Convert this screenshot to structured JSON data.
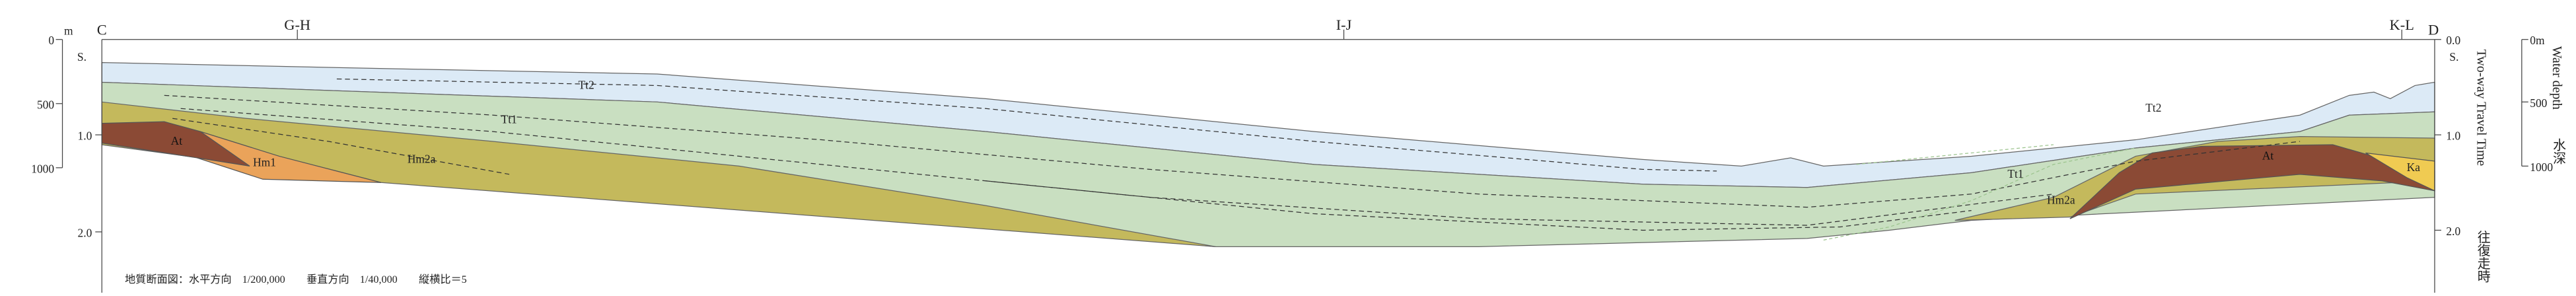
{
  "section_labels": [
    "C",
    "G-H",
    "I-J",
    "K-L",
    "D"
  ],
  "left_axis": {
    "depth_unit": "m",
    "depth_ticks": [
      "0",
      "500",
      "1000"
    ],
    "time_unit": "S.",
    "time_ticks": [
      "1.0",
      "2.0"
    ]
  },
  "right_axis": {
    "time_ticks": [
      "0.0",
      "1.0",
      "2.0"
    ],
    "time_unit": "S.",
    "time_title": "Two-way Travel Time",
    "time_title_ja": "往復走時",
    "depth_ticks": [
      "0m",
      "500",
      "1000"
    ],
    "depth_title": "Water depth",
    "depth_title_ja": "水深"
  },
  "units": [
    "Tt2",
    "Tt1",
    "At",
    "Hm1",
    "Hm2a",
    "Tt1",
    "Tt2",
    "Hm2a",
    "At",
    "Ka"
  ],
  "note": "地質断面図：水平方向　1/200,000　　垂直方向　1/40,000　　縦横比＝5"
}
